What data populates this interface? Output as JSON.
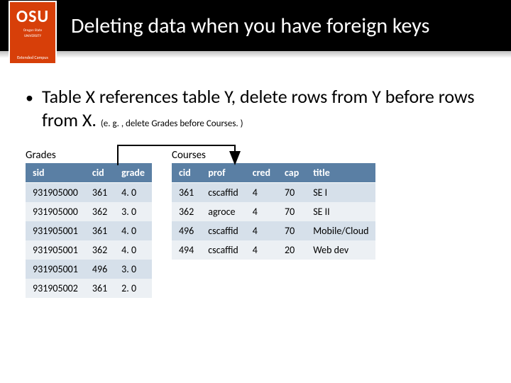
{
  "logo": {
    "main": "OSU",
    "sub": "Oregon State",
    "university": "UNIVERSITY",
    "ext": "Extended Campus"
  },
  "title": "Deleting data when you have foreign keys",
  "bullet": {
    "main": "Table X references table Y, delete rows from Y before rows from X.",
    "note": "(e. g. , delete Grades before Courses. )"
  },
  "grades": {
    "label": "Grades",
    "columns": [
      "sid",
      "cid",
      "grade"
    ],
    "rows": [
      [
        "931905000",
        "361",
        "4. 0"
      ],
      [
        "931905000",
        "362",
        "3. 0"
      ],
      [
        "931905001",
        "361",
        "4. 0"
      ],
      [
        "931905001",
        "362",
        "4. 0"
      ],
      [
        "931905001",
        "496",
        "3. 0"
      ],
      [
        "931905002",
        "361",
        "2. 0"
      ]
    ]
  },
  "courses": {
    "label": "Courses",
    "columns": [
      "cid",
      "prof",
      "cred",
      "cap",
      "title"
    ],
    "rows": [
      [
        "361",
        "cscaffid",
        "4",
        "70",
        "SE I"
      ],
      [
        "362",
        "agroce",
        "4",
        "70",
        "SE II"
      ],
      [
        "496",
        "cscaffid",
        "4",
        "70",
        "Mobile/Cloud"
      ],
      [
        "494",
        "cscaffid",
        "4",
        "20",
        "Web dev"
      ]
    ]
  },
  "colors": {
    "header_bg": "#5a7fa4",
    "row_odd": "#d6e0ea",
    "row_even": "#ecf0f4",
    "logo_bg": "#d73f09"
  }
}
